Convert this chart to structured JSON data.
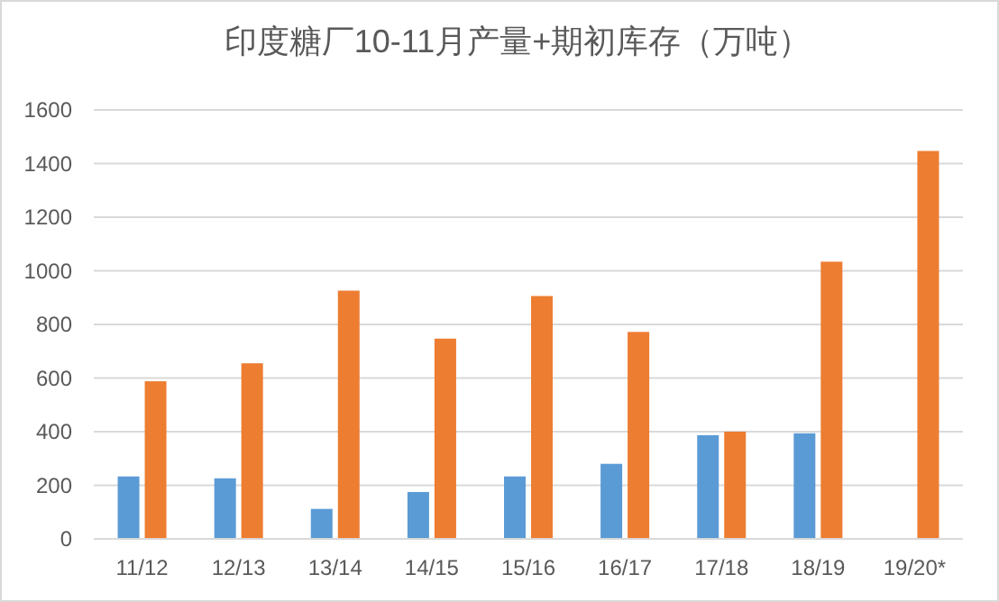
{
  "chart_data": {
    "type": "bar",
    "title": "印度糖厂10-11月产量+期初库存（万吨）",
    "categories": [
      "11/12",
      "12/13",
      "13/14",
      "14/15",
      "15/16",
      "16/17",
      "17/18",
      "18/19",
      "19/20*"
    ],
    "series": [
      {
        "color": "#5b9bd5",
        "values": [
          233,
          226,
          112,
          175,
          233,
          280,
          387,
          394,
          null
        ]
      },
      {
        "color": "#ed7d31",
        "values": [
          588,
          655,
          926,
          747,
          906,
          772,
          400,
          1034,
          1447
        ]
      }
    ],
    "ylim": [
      0,
      1600
    ],
    "yticks": [
      0,
      200,
      400,
      600,
      800,
      1000,
      1200,
      1400,
      1600
    ],
    "grid": "y"
  }
}
